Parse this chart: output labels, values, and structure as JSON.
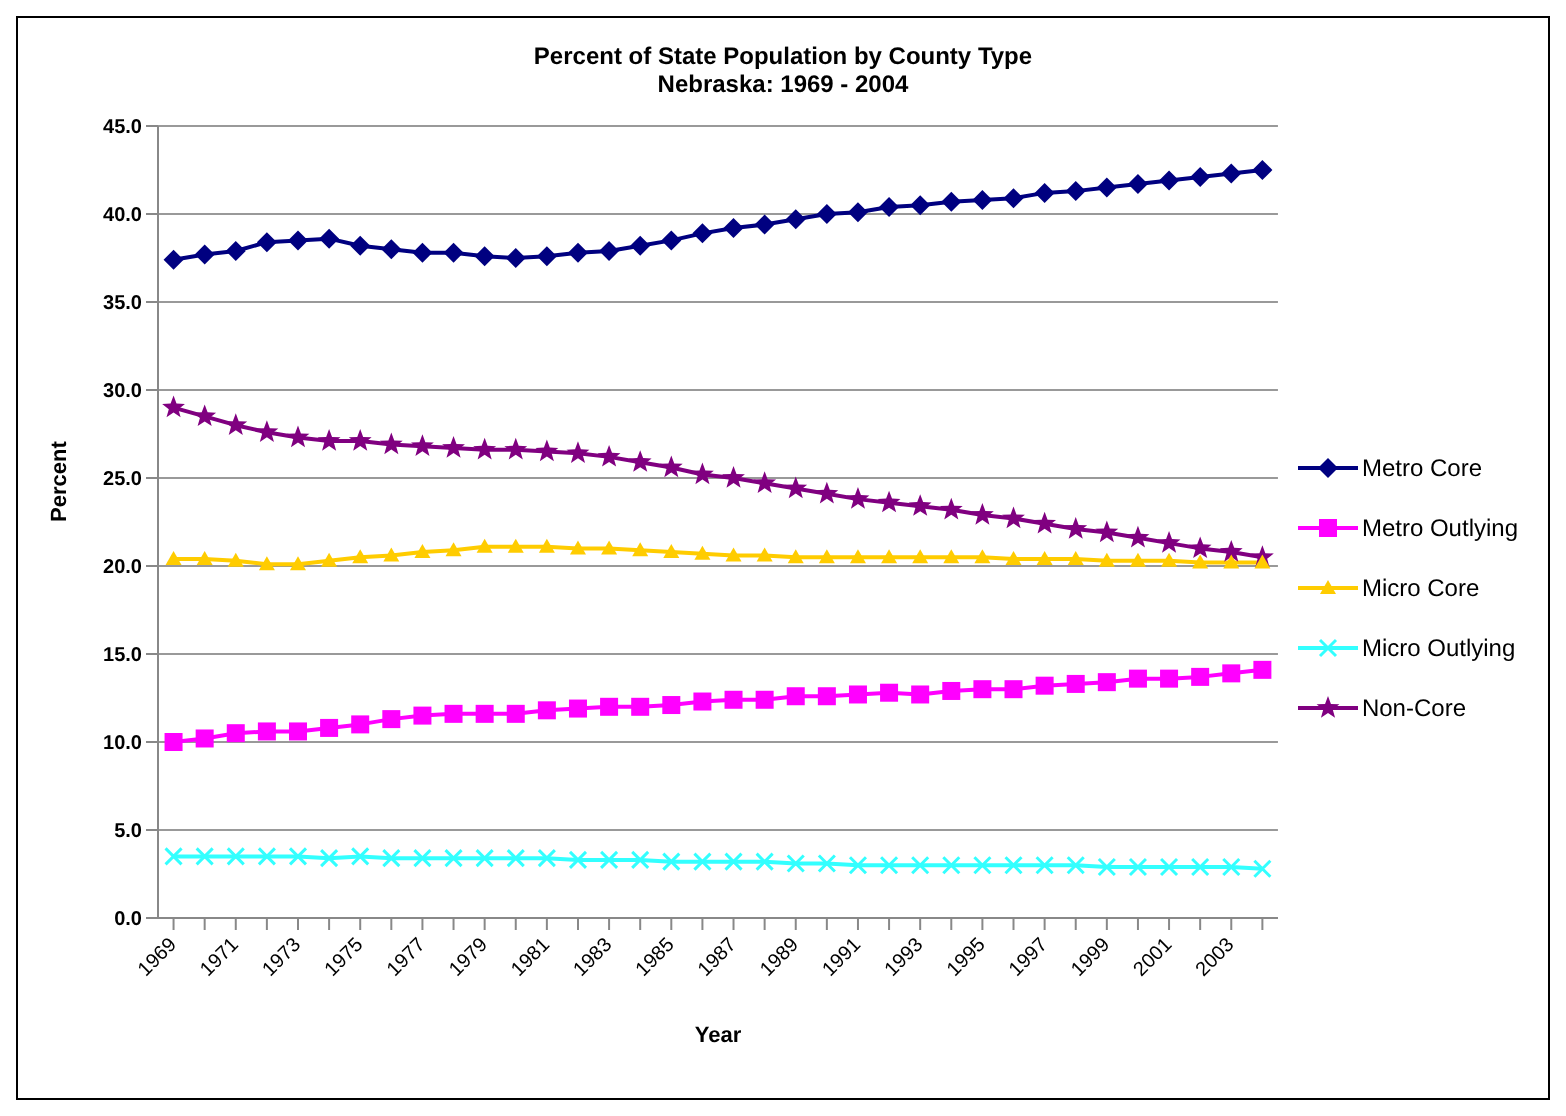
{
  "chart_data": {
    "type": "line",
    "title": "Percent of State Population by County Type",
    "subtitle": "Nebraska: 1969 - 2004",
    "xlabel": "Year",
    "ylabel": "Percent",
    "categories": [
      "1969",
      null,
      "1971",
      null,
      "1973",
      null,
      "1975",
      null,
      "1977",
      null,
      "1979",
      null,
      "1981",
      null,
      "1983",
      null,
      "1985",
      null,
      "1987",
      null,
      "1989",
      null,
      "1991",
      null,
      "1993",
      null,
      "1995",
      null,
      "1997",
      null,
      "1999",
      null,
      "2001",
      null,
      "2003",
      null
    ],
    "series": [
      {
        "name": "Metro Core",
        "color": "#000080",
        "marker": "diamond",
        "values": [
          37.4,
          37.7,
          37.9,
          38.4,
          38.5,
          38.6,
          38.2,
          38.0,
          37.8,
          37.8,
          37.6,
          37.5,
          37.6,
          37.8,
          37.9,
          38.2,
          38.5,
          38.9,
          39.2,
          39.4,
          39.7,
          40.0,
          40.1,
          40.4,
          40.5,
          40.7,
          40.8,
          40.9,
          41.2,
          41.3,
          41.5,
          41.7,
          41.9,
          42.1,
          42.3,
          42.5
        ]
      },
      {
        "name": "Metro Outlying",
        "color": "#ff00ff",
        "marker": "square",
        "values": [
          10.0,
          10.2,
          10.5,
          10.6,
          10.6,
          10.8,
          11.0,
          11.3,
          11.5,
          11.6,
          11.6,
          11.6,
          11.8,
          11.9,
          12.0,
          12.0,
          12.1,
          12.3,
          12.4,
          12.4,
          12.6,
          12.6,
          12.7,
          12.8,
          12.7,
          12.9,
          13.0,
          13.0,
          13.2,
          13.3,
          13.4,
          13.6,
          13.6,
          13.7,
          13.9,
          14.1
        ]
      },
      {
        "name": "Micro Core",
        "color": "#ffcc00",
        "marker": "triangle",
        "values": [
          20.4,
          20.4,
          20.3,
          20.1,
          20.1,
          20.3,
          20.5,
          20.6,
          20.8,
          20.9,
          21.1,
          21.1,
          21.1,
          21.0,
          21.0,
          20.9,
          20.8,
          20.7,
          20.6,
          20.6,
          20.5,
          20.5,
          20.5,
          20.5,
          20.5,
          20.5,
          20.5,
          20.4,
          20.4,
          20.4,
          20.3,
          20.3,
          20.3,
          20.2,
          20.2,
          20.2
        ]
      },
      {
        "name": "Micro Outlying",
        "color": "#33ffff",
        "marker": "cross",
        "values": [
          3.5,
          3.5,
          3.5,
          3.5,
          3.5,
          3.4,
          3.5,
          3.4,
          3.4,
          3.4,
          3.4,
          3.4,
          3.4,
          3.3,
          3.3,
          3.3,
          3.2,
          3.2,
          3.2,
          3.2,
          3.1,
          3.1,
          3.0,
          3.0,
          3.0,
          3.0,
          3.0,
          3.0,
          3.0,
          3.0,
          2.9,
          2.9,
          2.9,
          2.9,
          2.9,
          2.8
        ]
      },
      {
        "name": "Non-Core",
        "color": "#800080",
        "marker": "star",
        "values": [
          29.0,
          28.5,
          28.0,
          27.6,
          27.3,
          27.1,
          27.1,
          26.9,
          26.8,
          26.7,
          26.6,
          26.6,
          26.5,
          26.4,
          26.2,
          25.9,
          25.6,
          25.2,
          25.0,
          24.7,
          24.4,
          24.1,
          23.8,
          23.6,
          23.4,
          23.2,
          22.9,
          22.7,
          22.4,
          22.1,
          21.9,
          21.6,
          21.3,
          21.0,
          20.8,
          20.5
        ]
      }
    ],
    "ylim": [
      0,
      45
    ],
    "yticks": [
      {
        "value": 0,
        "label": "0.0"
      },
      {
        "value": 5,
        "label": "5.0"
      },
      {
        "value": 10,
        "label": "10.0"
      },
      {
        "value": 15,
        "label": "15.0"
      },
      {
        "value": 20,
        "label": "20.0"
      },
      {
        "value": 25,
        "label": "25.0"
      },
      {
        "value": 30,
        "label": "30.0"
      },
      {
        "value": 35,
        "label": "35.0"
      },
      {
        "value": 40,
        "label": "40.0"
      },
      {
        "value": 45,
        "label": "45.0"
      }
    ],
    "grid": "y",
    "legend": "right"
  }
}
